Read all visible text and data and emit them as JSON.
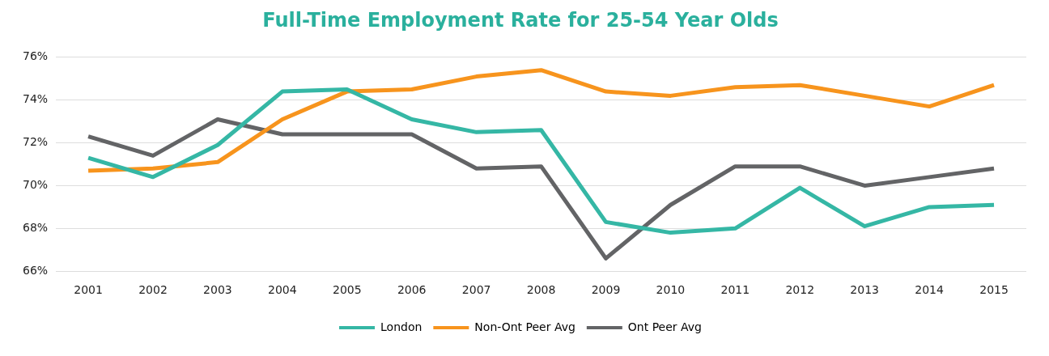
{
  "chart_data": {
    "type": "line",
    "title": "Full-Time Employment Rate for 25-54 Year Olds",
    "categories": [
      "2001",
      "2002",
      "2003",
      "2004",
      "2005",
      "2006",
      "2007",
      "2008",
      "2009",
      "2010",
      "2011",
      "2012",
      "2013",
      "2014",
      "2015"
    ],
    "series": [
      {
        "name": "London",
        "color": "#35b7a5",
        "values": [
          71.3,
          70.4,
          71.9,
          74.4,
          74.5,
          73.1,
          72.5,
          72.6,
          68.3,
          67.8,
          68.0,
          69.9,
          68.1,
          69.0,
          69.1
        ]
      },
      {
        "name": "Non-Ont Peer Avg",
        "color": "#f7941d",
        "values": [
          70.7,
          70.8,
          71.1,
          73.1,
          74.4,
          74.5,
          75.1,
          75.4,
          74.4,
          74.2,
          74.6,
          74.7,
          74.2,
          73.7,
          74.7
        ]
      },
      {
        "name": "Ont Peer Avg",
        "color": "#636466",
        "values": [
          72.3,
          71.4,
          73.1,
          72.4,
          72.4,
          72.4,
          70.8,
          70.9,
          66.6,
          69.1,
          70.9,
          70.9,
          70.0,
          70.4,
          70.8
        ]
      }
    ],
    "ylim": [
      66,
      76
    ],
    "yticks": [
      {
        "value": 66,
        "label": "66%"
      },
      {
        "value": 68,
        "label": "68%"
      },
      {
        "value": 70,
        "label": "70%"
      },
      {
        "value": 72,
        "label": "72%"
      },
      {
        "value": 74,
        "label": "74%"
      },
      {
        "value": 76,
        "label": "76%"
      }
    ],
    "grid": "y",
    "legend": "bottom",
    "marker": "none",
    "line_style": "solid"
  }
}
